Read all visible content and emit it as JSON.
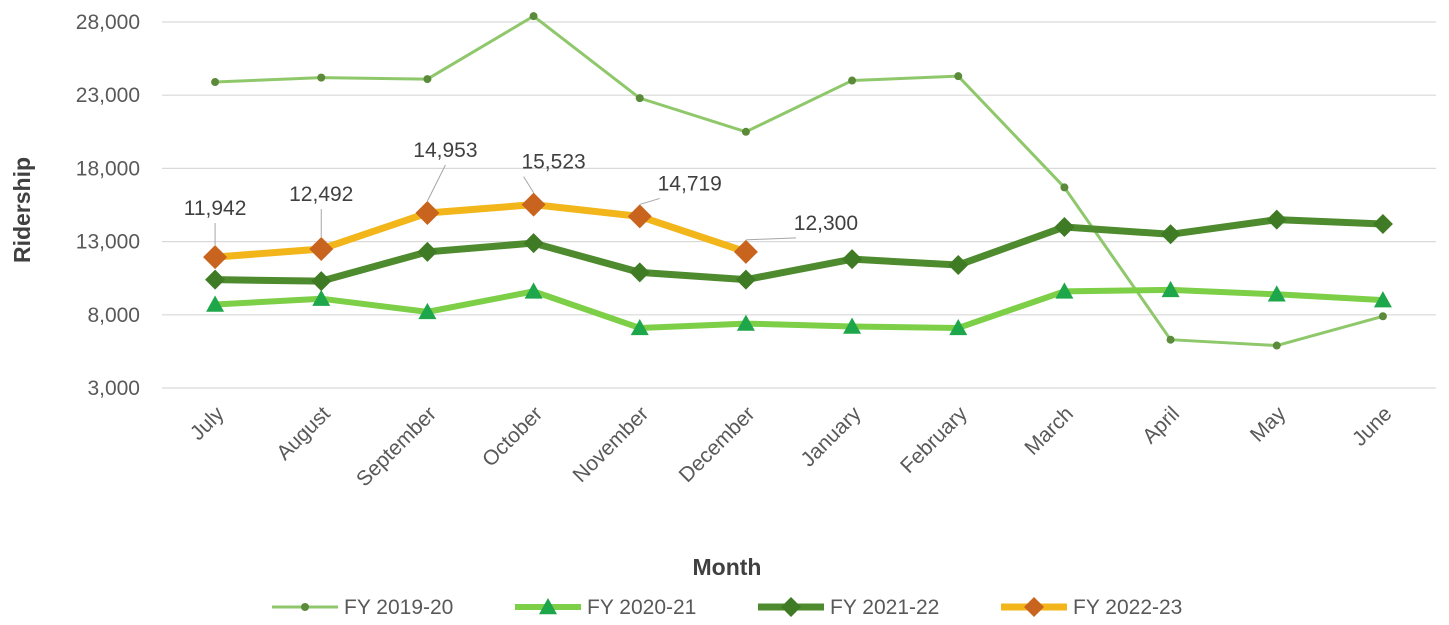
{
  "chart_data": {
    "type": "line",
    "title": "",
    "xlabel": "Month",
    "ylabel": "Ridership",
    "ylim": [
      3000,
      28000
    ],
    "yticks": [
      3000,
      8000,
      13000,
      18000,
      23000,
      28000
    ],
    "ytick_labels": [
      "3,000",
      "8,000",
      "13,000",
      "18,000",
      "23,000",
      "28,000"
    ],
    "categories": [
      "July",
      "August",
      "September",
      "October",
      "November",
      "December",
      "January",
      "February",
      "March",
      "April",
      "May",
      "June"
    ],
    "grid": true,
    "legend_position": "bottom",
    "series": [
      {
        "name": "FY 2019-20",
        "color": "#8fc76b",
        "marker": "dot",
        "values": [
          23900,
          24200,
          24100,
          28400,
          22800,
          20500,
          24000,
          24300,
          16700,
          6300,
          5900,
          7900
        ]
      },
      {
        "name": "FY 2020-21",
        "color": "#7ccf46",
        "marker": "triangle",
        "values": [
          8700,
          9100,
          8200,
          9600,
          7100,
          7400,
          7200,
          7100,
          9600,
          9700,
          9400,
          9000
        ]
      },
      {
        "name": "FY 2021-22",
        "color": "#4e8a2e",
        "marker": "diamond",
        "values": [
          10400,
          10300,
          12300,
          12900,
          10900,
          10400,
          11800,
          11400,
          14000,
          13500,
          14500,
          14200
        ]
      },
      {
        "name": "FY 2022-23",
        "color": "#f2b61b",
        "marker": "diamond",
        "marker_color": "#c8641e",
        "values": [
          11942,
          12492,
          14953,
          15523,
          14719,
          12300,
          null,
          null,
          null,
          null,
          null,
          null
        ],
        "data_labels": [
          "11,942",
          "12,492",
          "14,953",
          "15,523",
          "14,719",
          "12,300"
        ]
      }
    ]
  }
}
